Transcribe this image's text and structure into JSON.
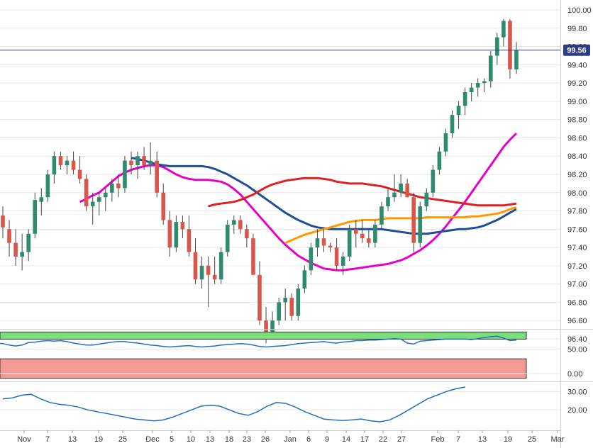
{
  "chart_data": [
    {
      "type": "candlestick",
      "panel": "price",
      "title": "",
      "ylim": [
        96.3,
        100.05
      ],
      "y_ticks": [
        "100.00",
        "99.80",
        "99.60",
        "99.40",
        "99.20",
        "99.00",
        "98.80",
        "98.60",
        "98.40",
        "98.20",
        "98.00",
        "97.80",
        "97.60",
        "97.40",
        "97.20",
        "97.00",
        "96.80",
        "96.60",
        "96.40"
      ],
      "x_tick_labels": [
        "Nov",
        "7",
        "13",
        "19",
        "25",
        "Dec",
        "5",
        "10",
        "13",
        "18",
        "23",
        "26",
        "Jan",
        "6",
        "9",
        "14",
        "17",
        "22",
        "27",
        "Feb",
        "7",
        "13",
        "19",
        "25",
        "Mar"
      ],
      "last_price": "99.56",
      "colors": {
        "up": "#2e8b6f",
        "down": "#d9574a",
        "last_price_line": "#2c3e80",
        "grid": "#e6e6e6"
      },
      "candles": [
        [
          97.75,
          97.85,
          97.5,
          97.62
        ],
        [
          97.6,
          97.7,
          97.3,
          97.45
        ],
        [
          97.45,
          97.6,
          97.2,
          97.3
        ],
        [
          97.3,
          97.55,
          97.15,
          97.35
        ],
        [
          97.35,
          97.6,
          97.25,
          97.55
        ],
        [
          97.55,
          98.0,
          97.5,
          97.92
        ],
        [
          97.9,
          98.05,
          97.75,
          97.95
        ],
        [
          97.95,
          98.25,
          97.9,
          98.2
        ],
        [
          98.2,
          98.45,
          98.1,
          98.4
        ],
        [
          98.4,
          98.45,
          98.25,
          98.3
        ],
        [
          98.3,
          98.4,
          98.2,
          98.35
        ],
        [
          98.35,
          98.45,
          98.2,
          98.25
        ],
        [
          98.25,
          98.4,
          98.1,
          98.15
        ],
        [
          98.15,
          98.2,
          97.8,
          97.85
        ],
        [
          97.85,
          98.0,
          97.65,
          97.9
        ],
        [
          97.9,
          98.0,
          97.75,
          97.95
        ],
        [
          97.95,
          98.05,
          97.8,
          98.0
        ],
        [
          98.0,
          98.15,
          97.9,
          98.1
        ],
        [
          98.1,
          98.2,
          97.95,
          98.05
        ],
        [
          98.05,
          98.4,
          98.0,
          98.35
        ],
        [
          98.35,
          98.45,
          98.2,
          98.3
        ],
        [
          98.3,
          98.45,
          98.15,
          98.4
        ],
        [
          98.4,
          98.5,
          98.25,
          98.3
        ],
        [
          98.3,
          98.55,
          98.2,
          98.35
        ],
        [
          98.35,
          98.45,
          97.95,
          98.0
        ],
        [
          98.0,
          98.1,
          97.65,
          97.7
        ],
        [
          97.7,
          97.8,
          97.3,
          97.4
        ],
        [
          97.4,
          97.75,
          97.35,
          97.68
        ],
        [
          97.68,
          97.75,
          97.5,
          97.6
        ],
        [
          97.6,
          97.75,
          97.3,
          97.35
        ],
        [
          97.35,
          97.5,
          97.0,
          97.05
        ],
        [
          97.05,
          97.3,
          96.95,
          97.2
        ],
        [
          97.2,
          97.3,
          96.75,
          97.1
        ],
        [
          97.1,
          97.3,
          97.0,
          97.05
        ],
        [
          97.05,
          97.4,
          97.0,
          97.35
        ],
        [
          97.35,
          97.7,
          97.3,
          97.65
        ],
        [
          97.65,
          97.75,
          97.55,
          97.7
        ],
        [
          97.7,
          97.75,
          97.55,
          97.6
        ],
        [
          97.6,
          97.65,
          97.4,
          97.5
        ],
        [
          97.5,
          97.55,
          97.1,
          97.1
        ],
        [
          97.1,
          97.25,
          96.55,
          96.6
        ],
        [
          96.6,
          96.75,
          96.35,
          96.45
        ],
        [
          96.45,
          96.7,
          96.4,
          96.6
        ],
        [
          96.6,
          96.85,
          96.55,
          96.8
        ],
        [
          96.8,
          96.95,
          96.6,
          96.85
        ],
        [
          96.85,
          96.9,
          96.6,
          96.65
        ],
        [
          96.65,
          97.0,
          96.6,
          96.95
        ],
        [
          96.95,
          97.2,
          96.9,
          97.15
        ],
        [
          97.15,
          97.45,
          97.1,
          97.4
        ],
        [
          97.4,
          97.6,
          97.3,
          97.5
        ],
        [
          97.5,
          97.6,
          97.35,
          97.42
        ],
        [
          97.42,
          97.45,
          97.35,
          97.4
        ],
        [
          97.4,
          97.5,
          97.15,
          97.2
        ],
        [
          97.2,
          97.35,
          97.1,
          97.3
        ],
        [
          97.3,
          97.65,
          97.25,
          97.6
        ],
        [
          97.6,
          97.7,
          97.4,
          97.55
        ],
        [
          97.55,
          97.7,
          97.45,
          97.5
        ],
        [
          97.5,
          97.6,
          97.4,
          97.45
        ],
        [
          97.45,
          97.7,
          97.4,
          97.65
        ],
        [
          97.65,
          97.9,
          97.6,
          97.85
        ],
        [
          97.85,
          98.05,
          97.8,
          97.95
        ],
        [
          97.95,
          98.2,
          97.9,
          98.0
        ],
        [
          98.0,
          98.2,
          97.95,
          98.1
        ],
        [
          98.1,
          98.15,
          97.95,
          97.95
        ],
        [
          97.95,
          98.0,
          97.35,
          97.45
        ],
        [
          97.45,
          97.9,
          97.4,
          97.85
        ],
        [
          97.85,
          98.05,
          97.8,
          98.0
        ],
        [
          98.0,
          98.3,
          97.95,
          98.25
        ],
        [
          98.25,
          98.5,
          98.2,
          98.45
        ],
        [
          98.45,
          98.7,
          98.4,
          98.65
        ],
        [
          98.65,
          98.9,
          98.6,
          98.85
        ],
        [
          98.85,
          99.0,
          98.7,
          98.95
        ],
        [
          98.95,
          99.15,
          98.85,
          99.1
        ],
        [
          99.1,
          99.2,
          99.0,
          99.15
        ],
        [
          99.15,
          99.25,
          99.05,
          99.2
        ],
        [
          99.2,
          99.25,
          99.1,
          99.22
        ],
        [
          99.22,
          99.55,
          99.15,
          99.5
        ],
        [
          99.5,
          99.75,
          99.4,
          99.7
        ],
        [
          99.7,
          99.9,
          99.6,
          99.88
        ],
        [
          99.88,
          99.9,
          99.25,
          99.35
        ],
        [
          99.35,
          99.65,
          99.3,
          99.56
        ]
      ],
      "series": [
        {
          "values": [
            97.9,
            97.93,
            97.97,
            98.0,
            98.06,
            98.12,
            98.18,
            98.22,
            98.25,
            98.27,
            98.29,
            98.3,
            98.3,
            98.28,
            98.24,
            98.2,
            98.17,
            98.15,
            98.14,
            98.14,
            98.14,
            98.13,
            98.12,
            98.09,
            98.04,
            97.98,
            97.9,
            97.82,
            97.74,
            97.66,
            97.58,
            97.5,
            97.43,
            97.37,
            97.31,
            97.27,
            97.23,
            97.2,
            97.17,
            97.16,
            97.15,
            97.15,
            97.16,
            97.17,
            97.18,
            97.19,
            97.2,
            97.21,
            97.22,
            97.24,
            97.26,
            97.29,
            97.33,
            97.37,
            97.42,
            97.48,
            97.55,
            97.63,
            97.72,
            97.81,
            97.9,
            98.0,
            98.1,
            98.2,
            98.3,
            98.4,
            98.5,
            98.58,
            98.65
          ],
          "color": "#e600c8"
        },
        {
          "values": [
            98.38,
            98.37,
            98.35,
            98.33,
            98.31,
            98.3,
            98.29,
            98.29,
            98.29,
            98.29,
            98.29,
            98.29,
            98.28,
            98.26,
            98.23,
            98.2,
            98.16,
            98.12,
            98.08,
            98.03,
            97.98,
            97.93,
            97.88,
            97.83,
            97.78,
            97.74,
            97.7,
            97.67,
            97.64,
            97.62,
            97.61,
            97.6,
            97.6,
            97.6,
            97.6,
            97.6,
            97.6,
            97.6,
            97.6,
            97.6,
            97.59,
            97.58,
            97.57,
            97.56,
            97.55,
            97.55,
            97.55,
            97.56,
            97.57,
            97.58,
            97.59,
            97.6,
            97.6,
            97.61,
            97.62,
            97.64,
            97.67,
            97.7,
            97.74,
            97.78,
            97.82
          ],
          "color": "#1f4e99"
        },
        {
          "values": [
            97.85,
            97.87,
            97.88,
            97.89,
            97.9,
            97.92,
            97.95,
            97.98,
            98.02,
            98.06,
            98.09,
            98.11,
            98.13,
            98.14,
            98.15,
            98.16,
            98.16,
            98.16,
            98.15,
            98.14,
            98.12,
            98.11,
            98.1,
            98.1,
            98.1,
            98.09,
            98.08,
            98.07,
            98.05,
            98.03,
            98.01,
            97.99,
            97.97,
            97.95,
            97.94,
            97.93,
            97.92,
            97.91,
            97.9,
            97.89,
            97.88,
            97.87,
            97.86,
            97.86,
            97.86,
            97.86,
            97.86,
            97.87,
            97.88
          ],
          "color": "#e02020"
        },
        {
          "values": [
            97.45,
            97.48,
            97.51,
            97.54,
            97.56,
            97.58,
            97.6,
            97.62,
            97.64,
            97.66,
            97.68,
            97.69,
            97.7,
            97.7,
            97.7,
            97.71,
            97.72,
            97.72,
            97.72,
            97.72,
            97.72,
            97.72,
            97.73,
            97.73,
            97.73,
            97.73,
            97.73,
            97.73,
            97.73,
            97.74,
            97.74,
            97.75,
            97.76,
            97.77,
            97.79,
            97.82,
            97.84
          ],
          "color": "#ff9900"
        }
      ]
    },
    {
      "type": "line",
      "panel": "oscillator-1",
      "ylim": [
        -10,
        85
      ],
      "y_ticks": [
        "50.00",
        "0.00"
      ],
      "bands": {
        "upper": 70,
        "lower": 30,
        "upper_color": "#7be07b",
        "lower_color": "#f29a96"
      },
      "series": [
        {
          "values": [
            62,
            61,
            58,
            56,
            58,
            63,
            64,
            66,
            67,
            66,
            67,
            65,
            62,
            60,
            58,
            58,
            60,
            62,
            64,
            65,
            65,
            63,
            62,
            60,
            58,
            57,
            55,
            54,
            55,
            56,
            57,
            55,
            54,
            55,
            56,
            58,
            59,
            60,
            61,
            60,
            58,
            55,
            54,
            55,
            56,
            57,
            59,
            61,
            62,
            63,
            64,
            65,
            63,
            62,
            64,
            65,
            67,
            67,
            68,
            68,
            69,
            70,
            71,
            70,
            62,
            60,
            66,
            67,
            68,
            69,
            70,
            70,
            70,
            70,
            69,
            71,
            73,
            75,
            76,
            72,
            67,
            68
          ],
          "color": "#1f6fbf"
        }
      ]
    },
    {
      "type": "line",
      "panel": "oscillator-2",
      "ylim": [
        10,
        34
      ],
      "y_ticks": [
        "30.00",
        "20.00"
      ],
      "series": [
        {
          "values": [
            26,
            26.5,
            28,
            28.5,
            26,
            24,
            23,
            22.5,
            21.5,
            20,
            19,
            18,
            17,
            16,
            15,
            14.5,
            14,
            14.5,
            16,
            18,
            20,
            22,
            22.5,
            22,
            20,
            18,
            17,
            19,
            22,
            24,
            23.5,
            21.5,
            19,
            17,
            15,
            14.5,
            14.2,
            14.5,
            15,
            14,
            13.5,
            14.5,
            17,
            20,
            23,
            26,
            28,
            30,
            31.5,
            32.5
          ],
          "color": "#1f6fbf"
        }
      ]
    }
  ]
}
